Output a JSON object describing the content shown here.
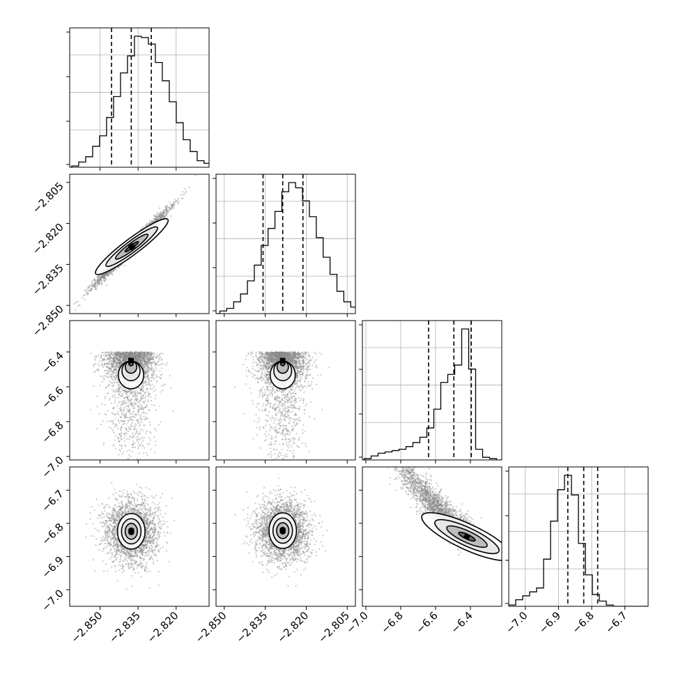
{
  "chart_data": {
    "type": "corner",
    "title": "",
    "parameters": [
      {
        "index": 0,
        "range": [
          -2.862,
          -2.807
        ],
        "ticks": [
          -2.85,
          -2.835,
          -2.82
        ],
        "tick_labels": [
          "−2.850",
          "−2.835",
          "−2.820"
        ],
        "quantiles": [
          -2.8455,
          -2.8377,
          -2.8298
        ]
      },
      {
        "index": 1,
        "range": [
          -2.853,
          -2.802
        ],
        "ticks": [
          -2.85,
          -2.835,
          -2.82,
          -2.805
        ],
        "tick_labels": [
          "−2.850",
          "−2.835",
          "−2.820",
          "−2.805"
        ],
        "quantiles": [
          -2.8358,
          -2.8286,
          -2.8212
        ]
      },
      {
        "index": 2,
        "range": [
          -7.02,
          -6.22
        ],
        "ticks": [
          -7.0,
          -6.8,
          -6.6,
          -6.4
        ],
        "tick_labels": [
          "−7.0",
          "−6.8",
          "−6.6",
          "−6.4"
        ],
        "quantiles": [
          -6.64,
          -6.495,
          -6.395
        ]
      },
      {
        "index": 3,
        "range": [
          -7.05,
          -6.63
        ],
        "ticks": [
          -7.0,
          -6.9,
          -6.8,
          -6.7
        ],
        "tick_labels": [
          "−7.0",
          "−6.9",
          "−6.8",
          "−6.7"
        ],
        "quantiles": [
          -6.872,
          -6.824,
          -6.782
        ]
      }
    ],
    "histograms": [
      {
        "param": 0,
        "bin_start": -2.8612,
        "bin_width": 0.00275,
        "counts": [
          1,
          4,
          8,
          16,
          24,
          38,
          54,
          72,
          85,
          100,
          99,
          94,
          80,
          66,
          50,
          34,
          21,
          12,
          5,
          3,
          1
        ]
      },
      {
        "param": 1,
        "bin_start": -2.8516,
        "bin_width": 0.00252,
        "counts": [
          2,
          4,
          9,
          15,
          25,
          37,
          52,
          65,
          78,
          93,
          100,
          96,
          86,
          74,
          58,
          43,
          30,
          17,
          9,
          5,
          2
        ]
      },
      {
        "param": 2,
        "bin_start": -7.01,
        "bin_width": 0.04,
        "counts": [
          1,
          3,
          5,
          6,
          7,
          8,
          10,
          13,
          17,
          24,
          38,
          58,
          64,
          71,
          98,
          68,
          8,
          2,
          1,
          0
        ]
      },
      {
        "param": 3,
        "bin_start": -7.05,
        "bin_width": 0.021,
        "counts": [
          1,
          5,
          8,
          11,
          14,
          36,
          65,
          89,
          100,
          85,
          48,
          24,
          9,
          4,
          1,
          0,
          0,
          0,
          0,
          0
        ]
      }
    ],
    "panels_2d": [
      {
        "x_param": 0,
        "y_param": 1,
        "kind": "correlated",
        "center": [
          -2.8375,
          -2.8285
        ],
        "slope": 0.94,
        "axis_sd": 0.0095,
        "perp_sd": 0.0009
      },
      {
        "x_param": 0,
        "y_param": 2,
        "kind": "blob",
        "center": [
          -2.8378,
          -6.45
        ],
        "sd": [
          0.0048,
          0.14
        ]
      },
      {
        "x_param": 1,
        "y_param": 2,
        "kind": "blob",
        "center": [
          -2.8286,
          -6.45
        ],
        "sd": [
          0.0044,
          0.14
        ]
      },
      {
        "x_param": 0,
        "y_param": 3,
        "kind": "blob",
        "center": [
          -2.8377,
          -6.824
        ],
        "sd": [
          0.0052,
          0.047
        ]
      },
      {
        "x_param": 1,
        "y_param": 3,
        "kind": "blob",
        "center": [
          -2.8286,
          -6.822
        ],
        "sd": [
          0.0048,
          0.047
        ]
      },
      {
        "x_param": 2,
        "y_param": 3,
        "kind": "curved",
        "center": [
          -6.42,
          -6.84
        ],
        "sd": [
          0.12,
          0.04
        ]
      }
    ]
  }
}
